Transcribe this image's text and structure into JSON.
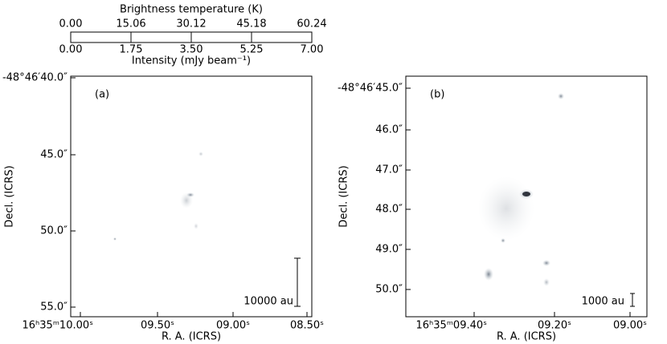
{
  "colorbar": {
    "top_title": "Brightness temperature (K)",
    "top_lim": [
      0,
      60.24
    ],
    "top_ticks": [
      {
        "value": 0,
        "label": "0.00"
      },
      {
        "value": 15.06,
        "label": "15.06"
      },
      {
        "value": 30.12,
        "label": "30.12"
      },
      {
        "value": 45.18,
        "label": "45.18"
      },
      {
        "value": 60.24,
        "label": "60.24"
      }
    ],
    "bottom_title": "Intensity (mJy beam⁻¹)",
    "bottom_lim": [
      0,
      7
    ],
    "bottom_ticks": [
      {
        "value": 0,
        "label": "0.00"
      },
      {
        "value": 1.75,
        "label": "1.75"
      },
      {
        "value": 3.5,
        "label": "3.50"
      },
      {
        "value": 5.25,
        "label": "5.25"
      },
      {
        "value": 7,
        "label": "7.00"
      }
    ]
  },
  "panels": [
    {
      "label": "(a)",
      "x_label": "R. A. (ICRS)",
      "y_label": "Decl. (ICRS)",
      "scale_bar": "10000 au",
      "x_ticks": [
        "16ʰ35ᵐ10.00ˢ",
        "09.50ˢ",
        "09.00ˢ",
        "08.50ˢ"
      ],
      "y_ticks": [
        "-48°46′40.0″",
        "45.0″",
        "50.0″",
        "55.0″"
      ]
    },
    {
      "label": "(b)",
      "x_label": "R. A. (ICRS)",
      "y_label": "Decl. (ICRS)",
      "scale_bar": "1000 au",
      "x_ticks": [
        "16ʰ35ᵐ09.40ˢ",
        "09.20ˢ",
        "09.00ˢ"
      ],
      "y_ticks": [
        "-48°46′45.0″",
        "46.0″",
        "47.0″",
        "48.0″",
        "49.0″",
        "50.0″"
      ]
    }
  ]
}
